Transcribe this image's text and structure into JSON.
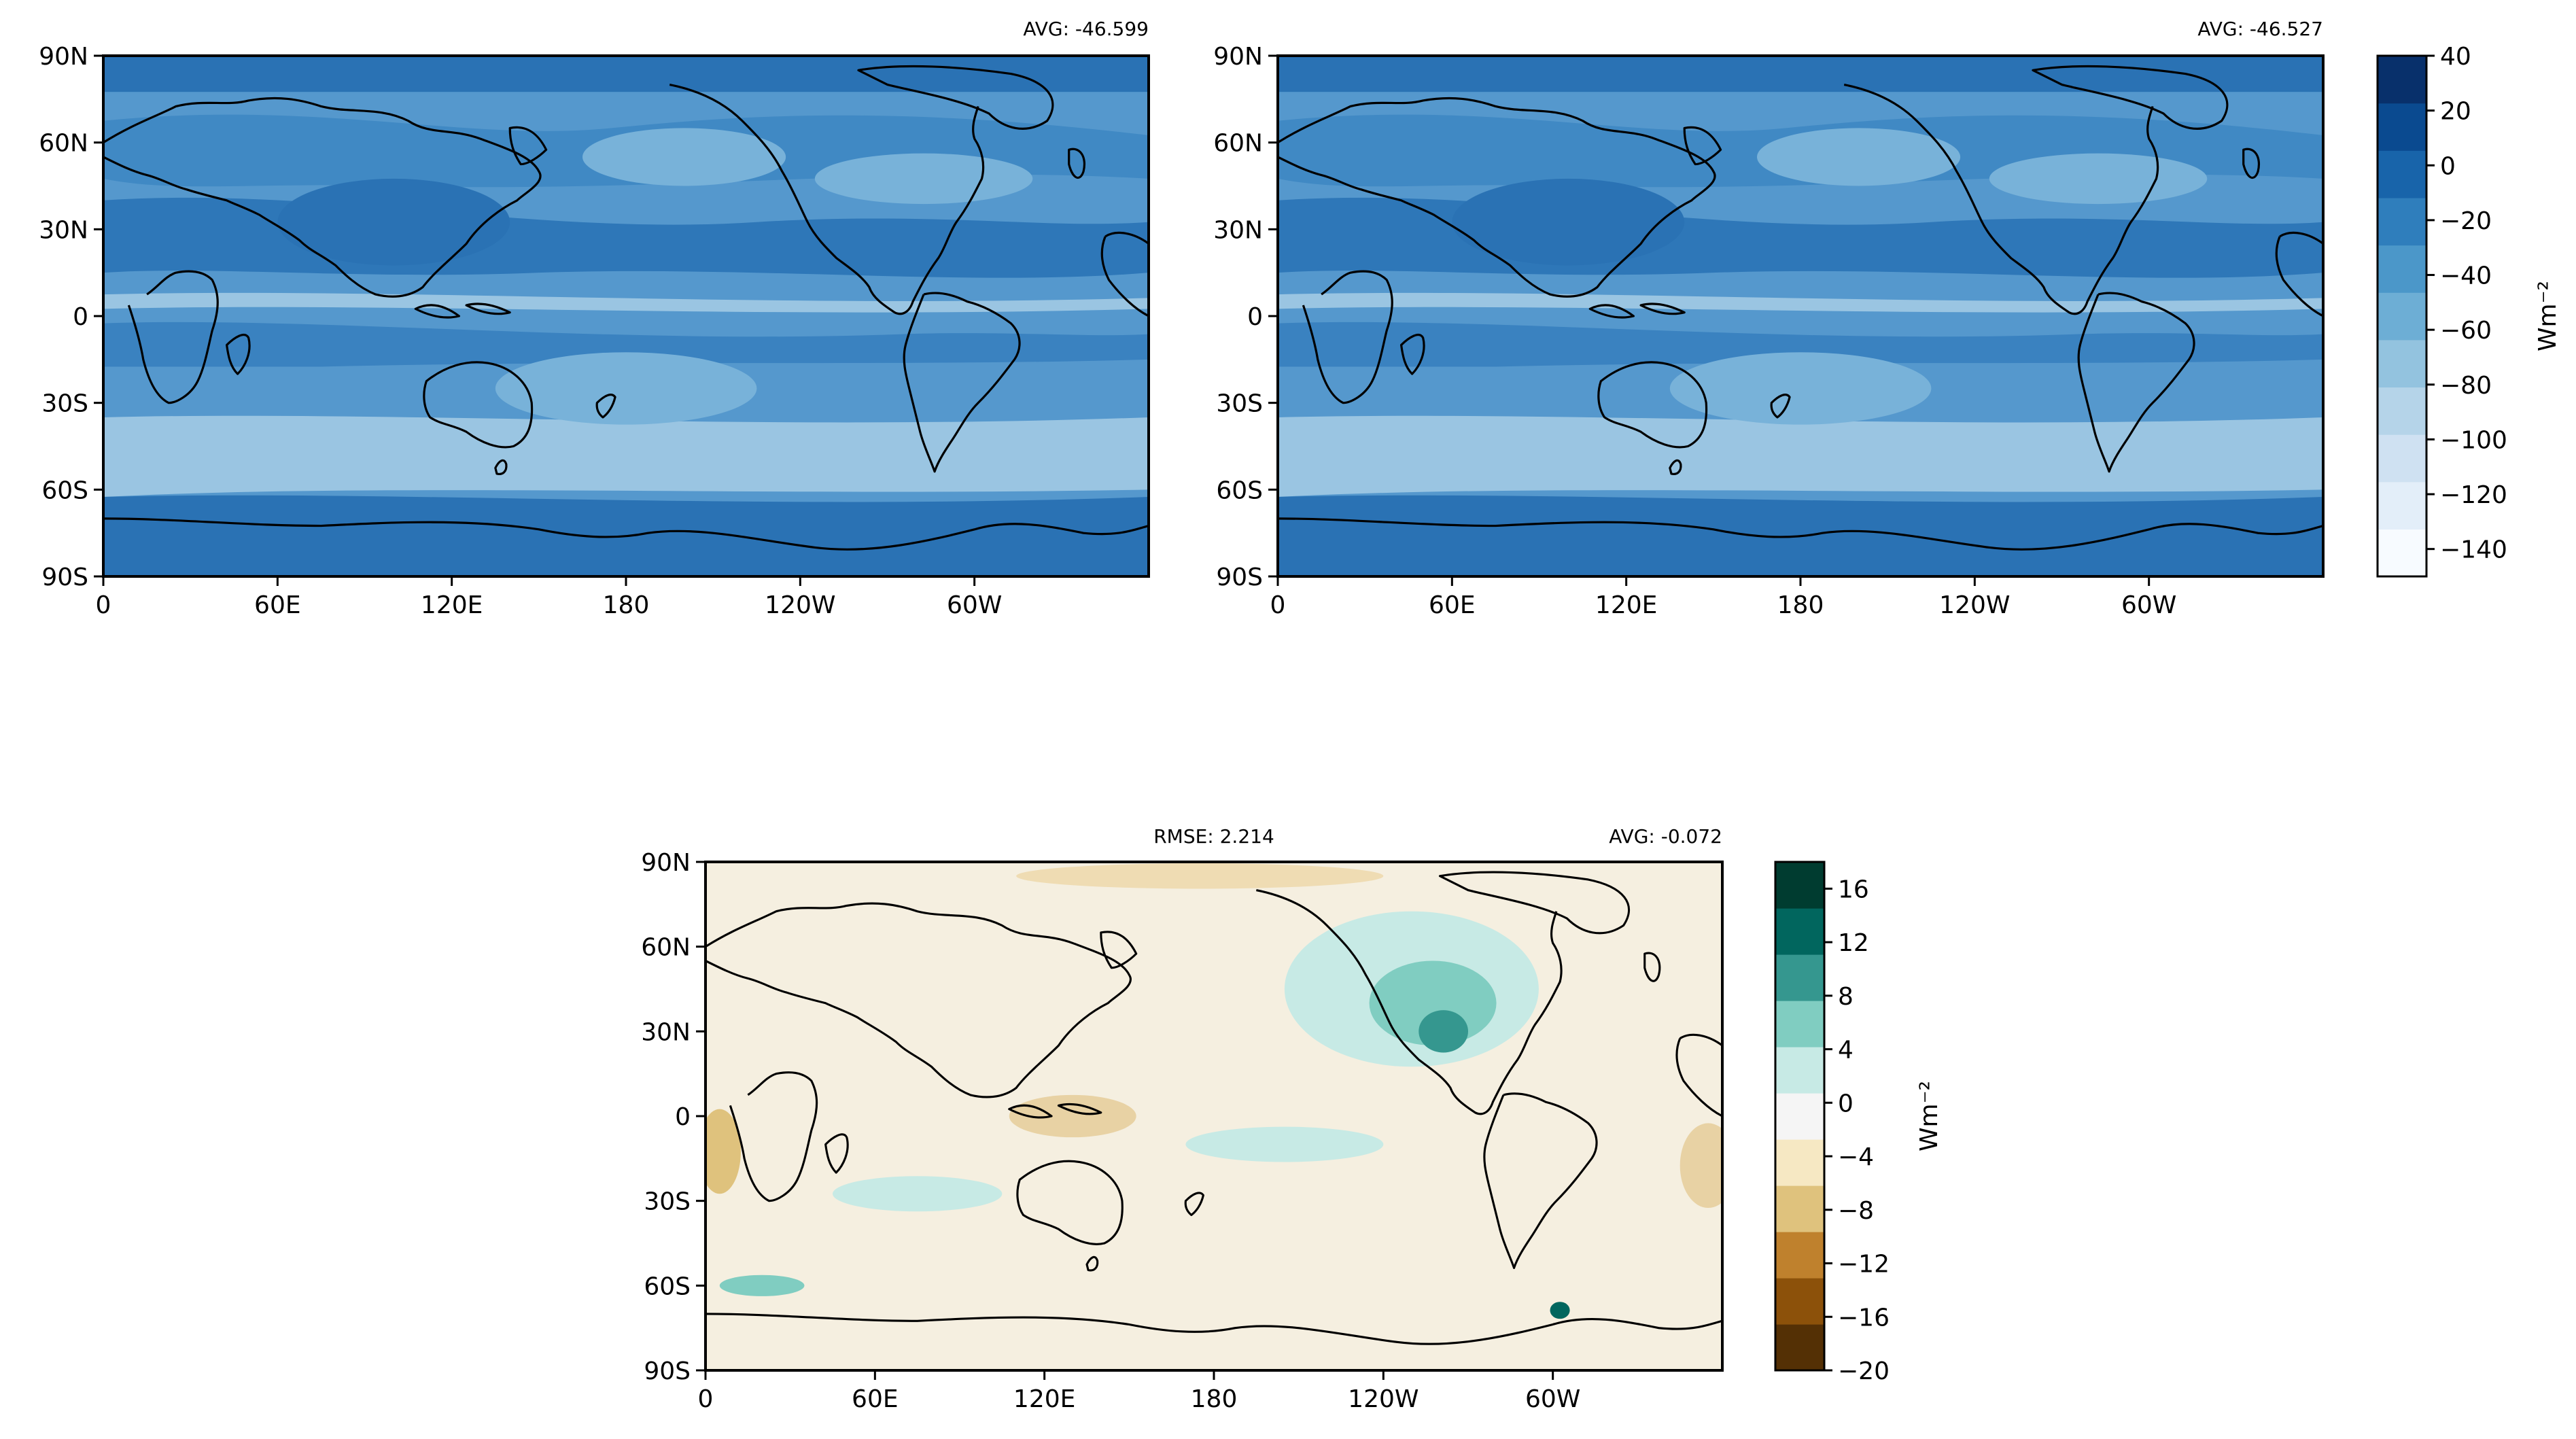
{
  "figure": {
    "panels": [
      {
        "id": "top-left",
        "stats": {
          "left": "",
          "right": "AVG: -46.599"
        },
        "field": "blues"
      },
      {
        "id": "top-right",
        "stats": {
          "left": "",
          "right": "AVG: -46.527"
        },
        "field": "blues"
      },
      {
        "id": "bottom-diff",
        "stats": {
          "left": "RMSE: 2.214",
          "right": "AVG: -0.072"
        },
        "field": "brbg"
      }
    ],
    "axes": {
      "x_ticks": [
        "0",
        "60E",
        "120E",
        "180",
        "120W",
        "60W"
      ],
      "y_ticks": [
        "90N",
        "60N",
        "30N",
        "0",
        "30S",
        "60S",
        "90S"
      ]
    },
    "colorbars": [
      {
        "id": "blues-colorbar",
        "unit": "Wm⁻²",
        "range": [
          -150,
          40
        ],
        "ticks": [
          "40",
          "20",
          "0",
          "−20",
          "−40",
          "−60",
          "−80",
          "−100",
          "−120",
          "−140"
        ],
        "colors": [
          "#f7fbff",
          "#e3eef9",
          "#cfe1f2",
          "#b5d4e9",
          "#93c3df",
          "#6daed5",
          "#4b97c9",
          "#2f7ebc",
          "#1864aa",
          "#0a4a90",
          "#08306b"
        ]
      },
      {
        "id": "brbg-colorbar",
        "unit": "Wm⁻²",
        "range": [
          -20,
          18
        ],
        "ticks": [
          "16",
          "12",
          "8",
          "4",
          "0",
          "−4",
          "−8",
          "−12",
          "−16",
          "−20"
        ],
        "colors": [
          "#543005",
          "#8c510a",
          "#bf812d",
          "#dfc27d",
          "#f6e8c3",
          "#f5f5f5",
          "#c7eae5",
          "#80cdc1",
          "#35978f",
          "#01665e",
          "#003c30"
        ]
      }
    ]
  }
}
